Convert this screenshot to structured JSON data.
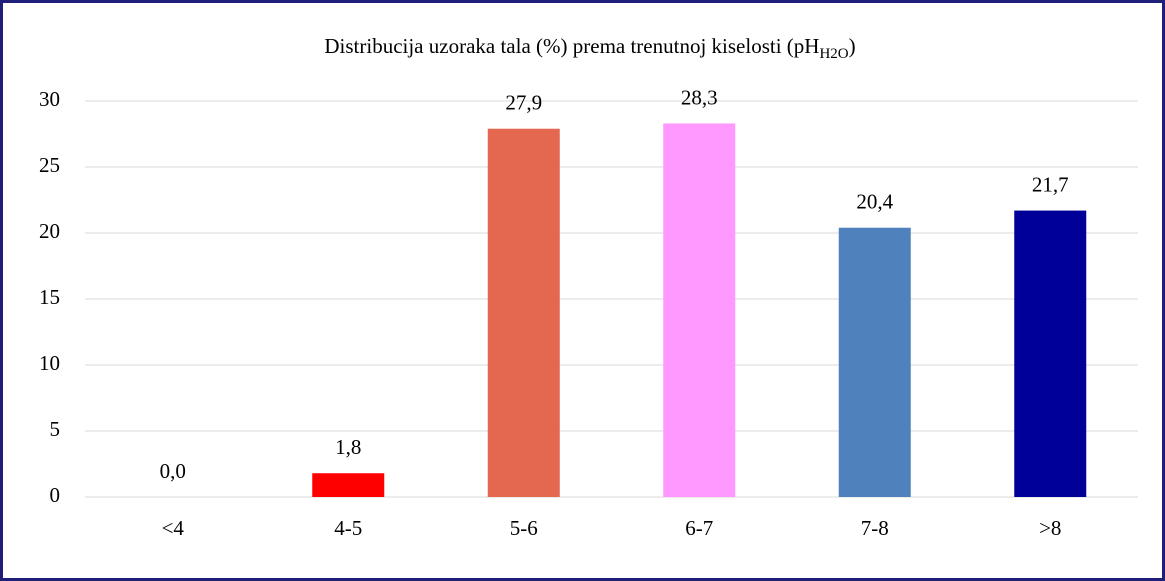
{
  "chart_data": {
    "type": "bar",
    "title": [
      "Distribucija uzoraka tala (%) prema trenutnoj kiselosti (pH",
      "H2O",
      ")"
    ],
    "categories": [
      "<4",
      "4-5",
      "5-6",
      "6-7",
      "7-8",
      ">8"
    ],
    "values": [
      0.0,
      1.8,
      27.9,
      28.3,
      20.4,
      21.7
    ],
    "value_labels": [
      "0,0",
      "1,8",
      "27,9",
      "28,3",
      "20,4",
      "21,7"
    ],
    "colors": [
      "#c00000",
      "#ff0000",
      "#e46750",
      "#ff99ff",
      "#4f81bd",
      "#000099"
    ],
    "ylim": [
      0,
      30
    ],
    "yticks": [
      0,
      5,
      10,
      15,
      20,
      25,
      30
    ],
    "grid": true
  }
}
